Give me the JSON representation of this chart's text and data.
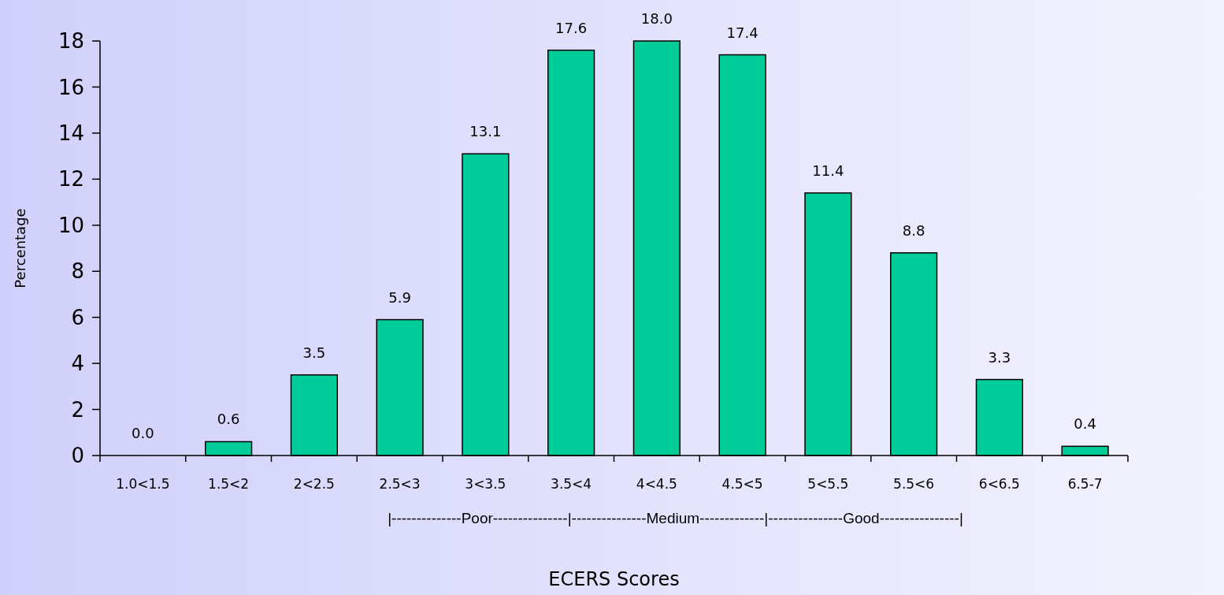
{
  "chart_data": {
    "type": "bar",
    "xlabel": "ECERS Scores",
    "ylabel": "Percentage",
    "categories": [
      "1.0<1.5",
      "1.5<2",
      "2<2.5",
      "2.5<3",
      "3<3.5",
      "3.5<4",
      "4<4.5",
      "4.5<5",
      "5<5.5",
      "5.5<6",
      "6<6.5",
      "6.5-7"
    ],
    "values": [
      0.0,
      0.6,
      3.5,
      5.9,
      13.1,
      17.6,
      18.0,
      17.4,
      11.4,
      8.8,
      3.3,
      0.4
    ],
    "value_labels": [
      "0.0",
      "0.6",
      "3.5",
      "5.9",
      "13.1",
      "17.6",
      "18.0",
      "17.4",
      "11.4",
      "8.8",
      "3.3",
      "0.4"
    ],
    "color": "#00cc99",
    "ylim": [
      0,
      18
    ],
    "yticks": [
      0,
      2,
      4,
      6,
      8,
      10,
      12,
      14,
      16,
      18
    ],
    "grid": false,
    "annotations": [
      "|--------------Poor---------------|---------------Medium-------------|---------------Good----------------|"
    ]
  }
}
